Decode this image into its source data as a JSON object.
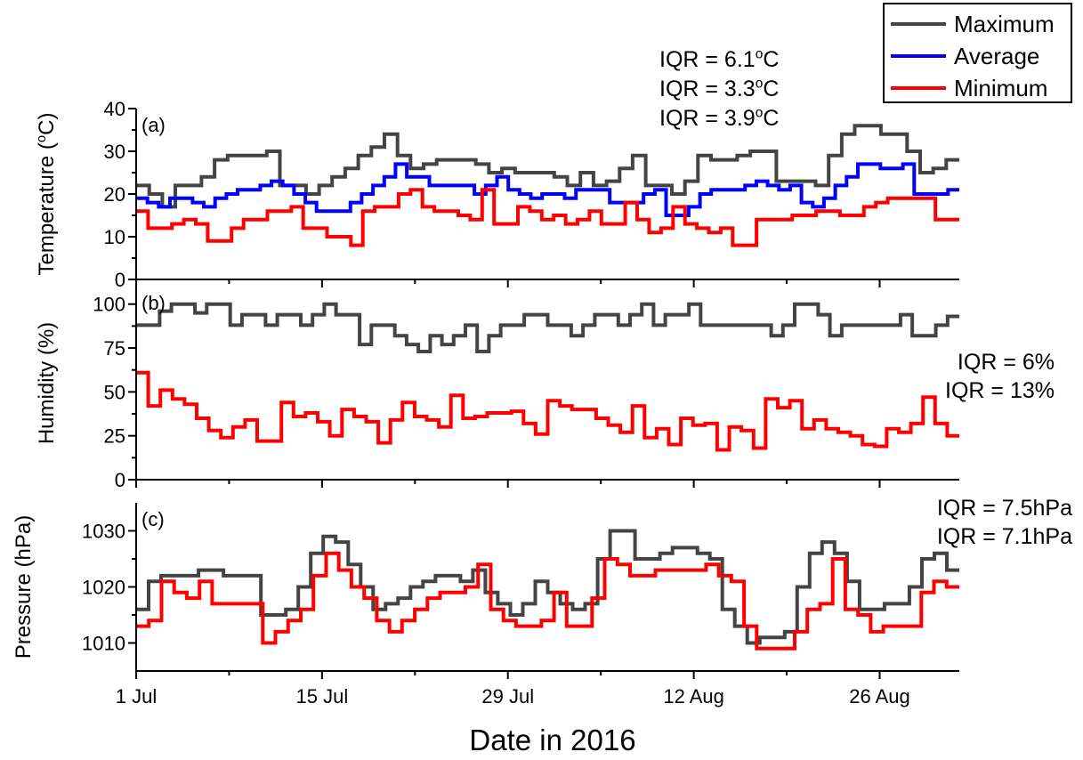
{
  "chart_data": {
    "type": "line",
    "step": true,
    "shared_xlabel": "Date in 2016",
    "x_ticks": [
      "1 Jul",
      "15 Jul",
      "29 Jul",
      "12 Aug",
      "26 Aug"
    ],
    "x_tick_days": [
      0,
      14,
      28,
      42,
      56
    ],
    "x_range_days": [
      0,
      62
    ],
    "legend": {
      "position": "top-right",
      "entries": [
        {
          "name": "Maximum",
          "color": "#444444"
        },
        {
          "name": "Average",
          "color": "#0000ff"
        },
        {
          "name": "Minimum",
          "color": "#ff0000"
        }
      ]
    },
    "panels": [
      {
        "tag": "(a)",
        "ylabel_prefix": "Temperature (",
        "ylabel_sup": "o",
        "ylabel_suffix": "C)",
        "ylim": [
          0,
          40
        ],
        "yticks": [
          0,
          10,
          20,
          30,
          40
        ],
        "y_minor": [
          5,
          15,
          25,
          35
        ],
        "annotations": [
          {
            "prefix": "IQR = 6.1",
            "sup": "o",
            "suffix": "C",
            "color": "#000000"
          },
          {
            "prefix": "IQR = 3.3",
            "sup": "o",
            "suffix": "C",
            "color": "#0000ff"
          },
          {
            "prefix": "IQR = 3.9",
            "sup": "o",
            "suffix": "C",
            "color": "#ff0000"
          }
        ],
        "series": [
          {
            "name": "Maximum",
            "color": "#444444",
            "values": [
              22,
              20,
              17,
              22,
              22,
              24,
              28,
              29,
              29,
              29,
              30,
              22,
              22,
              20,
              22,
              24,
              26,
              29,
              31,
              34,
              29,
              26,
              27,
              28,
              28,
              28,
              27,
              25,
              26,
              25,
              25,
              25,
              24,
              22,
              25,
              22,
              23,
              26,
              29,
              22,
              22,
              20,
              23,
              29,
              28,
              28,
              29,
              30,
              30,
              23,
              23,
              23,
              22,
              29,
              34,
              36,
              36,
              34,
              34,
              30,
              25,
              26,
              28
            ]
          },
          {
            "name": "Average",
            "color": "#0000ff",
            "values": [
              19,
              18,
              17,
              19,
              19,
              18,
              17,
              19,
              20,
              21,
              21,
              22,
              23,
              22,
              20,
              18,
              16,
              16,
              16,
              18,
              20,
              22,
              24,
              27,
              24,
              24,
              22,
              22,
              22,
              22,
              20,
              22,
              24,
              21,
              20,
              19,
              20,
              20,
              19,
              21,
              21,
              21,
              18,
              18,
              18,
              20,
              21,
              15,
              15,
              17,
              20,
              21,
              21,
              21,
              22,
              23,
              22,
              21,
              22,
              18,
              17,
              19,
              22,
              24,
              27,
              27,
              26,
              26,
              27,
              20,
              20,
              20,
              21
            ]
          },
          {
            "name": "Minimum",
            "color": "#ff0000",
            "values": [
              16,
              12,
              12,
              13,
              14,
              13,
              9,
              9,
              12,
              14,
              14,
              16,
              16,
              17,
              12,
              12,
              10,
              10,
              8,
              16,
              17,
              17,
              20,
              21,
              17,
              16,
              16,
              15,
              14,
              21,
              13,
              13,
              17,
              16,
              14,
              15,
              13,
              14,
              16,
              13,
              13,
              18,
              14,
              11,
              12,
              17,
              13,
              12,
              11,
              12,
              8,
              8,
              14,
              14,
              14,
              15,
              15,
              16,
              16,
              15,
              15,
              17,
              18,
              19,
              19,
              19,
              19,
              14,
              14
            ]
          }
        ]
      },
      {
        "tag": "(b)",
        "ylabel_prefix": "Humidity (%)",
        "ylabel_sup": "",
        "ylabel_suffix": "",
        "ylim": [
          0,
          110
        ],
        "yticks": [
          0,
          25,
          50,
          75,
          100
        ],
        "y_minor": [
          12.5,
          37.5,
          62.5,
          87.5
        ],
        "annotations": [
          {
            "prefix": "IQR = 6%",
            "sup": "",
            "suffix": "",
            "color": "#000000"
          },
          {
            "prefix": "IQR = 13%",
            "sup": "",
            "suffix": "",
            "color": "#ff0000"
          }
        ],
        "series": [
          {
            "name": "Maximum",
            "color": "#444444",
            "values": [
              88,
              88,
              96,
              100,
              100,
              95,
              100,
              100,
              88,
              94,
              94,
              88,
              94,
              94,
              88,
              94,
              100,
              94,
              94,
              77,
              88,
              88,
              82,
              77,
              73,
              82,
              77,
              82,
              88,
              73,
              82,
              88,
              88,
              94,
              94,
              88,
              88,
              82,
              88,
              94,
              94,
              88,
              94,
              100,
              88,
              94,
              94,
              100,
              88,
              88,
              88,
              88,
              88,
              88,
              82,
              88,
              100,
              100,
              94,
              82,
              88,
              88,
              88,
              88,
              88,
              94,
              82,
              82,
              88,
              93
            ]
          },
          {
            "name": "Minimum",
            "color": "#ff0000",
            "values": [
              61,
              42,
              51,
              46,
              43,
              35,
              28,
              24,
              30,
              34,
              22,
              22,
              44,
              36,
              38,
              33,
              25,
              40,
              36,
              33,
              21,
              34,
              44,
              36,
              34,
              30,
              48,
              35,
              36,
              38,
              38,
              39,
              32,
              26,
              45,
              42,
              40,
              40,
              35,
              31,
              27,
              42,
              24,
              29,
              20,
              35,
              31,
              32,
              17,
              30,
              28,
              18,
              46,
              41,
              45,
              29,
              34,
              29,
              27,
              25,
              20,
              19,
              29,
              27,
              32,
              47,
              32,
              25
            ]
          }
        ]
      },
      {
        "tag": "(c)",
        "ylabel_prefix": "Pressure (hPa)",
        "ylabel_sup": "",
        "ylabel_suffix": "",
        "ylim": [
          1005,
          1035
        ],
        "yticks": [
          1010,
          1020,
          1030
        ],
        "y_minor": [
          1015,
          1025
        ],
        "annotations": [
          {
            "prefix": "IQR = 7.5hPa",
            "sup": "",
            "suffix": "",
            "color": "#000000"
          },
          {
            "prefix": "IQR = 7.1hPa",
            "sup": "",
            "suffix": "",
            "color": "#ff0000"
          }
        ],
        "series": [
          {
            "name": "Maximum",
            "color": "#444444",
            "values": [
              1016,
              1021,
              1022,
              1022,
              1022,
              1023,
              1023,
              1022,
              1022,
              1022,
              1015,
              1015,
              1016,
              1020,
              1026,
              1029,
              1028,
              1024,
              1020,
              1016,
              1017,
              1018,
              1020,
              1021,
              1022,
              1022,
              1021,
              1023,
              1019,
              1017,
              1015,
              1017,
              1021,
              1019,
              1017,
              1016,
              1017,
              1025,
              1030,
              1030,
              1025,
              1025,
              1026,
              1027,
              1027,
              1026,
              1025,
              1016,
              1013,
              1010,
              1011,
              1011,
              1012,
              1020,
              1026,
              1028,
              1026,
              1021,
              1016,
              1016,
              1017,
              1017,
              1020,
              1025,
              1026,
              1023
            ]
          },
          {
            "name": "Minimum",
            "color": "#ff0000",
            "values": [
              1013,
              1014,
              1021,
              1019,
              1018,
              1021,
              1017,
              1017,
              1017,
              1017,
              1010,
              1012,
              1014,
              1016,
              1022,
              1026,
              1023,
              1020,
              1018,
              1014,
              1012,
              1014,
              1016,
              1018,
              1019,
              1019,
              1020,
              1024,
              1016,
              1014,
              1013,
              1013,
              1014,
              1019,
              1013,
              1013,
              1018,
              1025,
              1024,
              1022,
              1022,
              1023,
              1023,
              1023,
              1023,
              1024,
              1022,
              1021,
              1013,
              1009,
              1009,
              1009,
              1012,
              1016,
              1017,
              1025,
              1016,
              1015,
              1012,
              1013,
              1013,
              1013,
              1019,
              1021,
              1020
            ]
          }
        ]
      }
    ]
  }
}
